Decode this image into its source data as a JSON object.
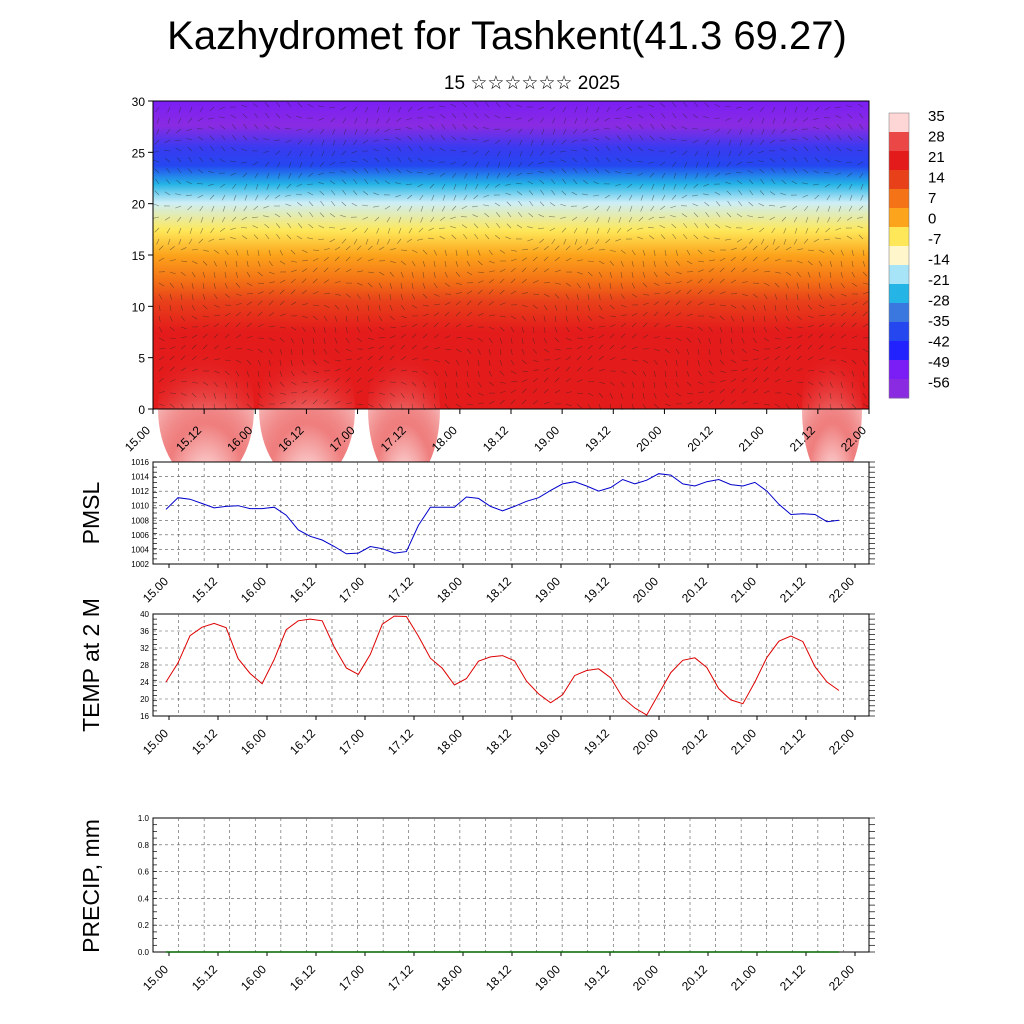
{
  "title": "Kazhydromet for Tashkent(41.3 69.27)",
  "subtitle": "15 ☆☆☆☆☆☆ 2025",
  "chart_data": [
    {
      "id": "cross_section",
      "type": "heatmap",
      "ylim": [
        0,
        30
      ],
      "yticks": [
        0,
        5,
        10,
        15,
        20,
        25,
        30
      ],
      "xticks": [
        "15.00",
        "15.12",
        "16.00",
        "16.12",
        "17.00",
        "17.12",
        "18.00",
        "18.12",
        "19.00",
        "19.12",
        "20.00",
        "20.12",
        "21.00",
        "21.12",
        "22.00"
      ],
      "colorbar_labels": [
        "35",
        "28",
        "21",
        "14",
        "7",
        "0",
        "-7",
        "-14",
        "-21",
        "-28",
        "-35",
        "-42",
        "-49",
        "-56"
      ],
      "colorbar_colors": [
        "#ffd6d6",
        "#ec4747",
        "#e41b1b",
        "#e8411a",
        "#f47316",
        "#fca41c",
        "#fee85a",
        "#fff6cc",
        "#a8e4f7",
        "#24b4e6",
        "#3a78e0",
        "#2447f0",
        "#2222ff",
        "#7a1ef5",
        "#8a2be2"
      ]
    },
    {
      "id": "pmsl",
      "type": "line",
      "ylabel": "PMSL",
      "ylim": [
        1002,
        1016
      ],
      "yticks": [
        1002,
        1004,
        1006,
        1008,
        1010,
        1012,
        1014,
        1016
      ],
      "xticks": [
        "15.00",
        "15.12",
        "16.00",
        "16.12",
        "17.00",
        "17.12",
        "18.00",
        "18.12",
        "19.00",
        "19.12",
        "20.00",
        "20.12",
        "21.00",
        "21.12",
        "22.00"
      ],
      "color": "#0000cc",
      "values": [
        1009.5,
        1011.1,
        1010.9,
        1010.3,
        1009.7,
        1009.9,
        1010.0,
        1009.6,
        1009.6,
        1009.8,
        1008.7,
        1006.7,
        1005.8,
        1005.3,
        1004.4,
        1003.4,
        1003.5,
        1004.4,
        1004.1,
        1003.5,
        1003.7,
        1007.3,
        1009.8,
        1009.8,
        1009.8,
        1011.2,
        1011.0,
        1009.9,
        1009.3,
        1009.9,
        1010.6,
        1011.1,
        1012.1,
        1013.0,
        1013.3,
        1012.7,
        1012.0,
        1012.5,
        1013.6,
        1013.0,
        1013.5,
        1014.4,
        1014.2,
        1013.0,
        1012.7,
        1013.3,
        1013.6,
        1012.9,
        1012.7,
        1013.2,
        1012.0,
        1010.2,
        1008.8,
        1008.9,
        1008.8,
        1007.8,
        1008.0
      ]
    },
    {
      "id": "temp2m",
      "type": "line",
      "ylabel": "TEMP at 2 M",
      "ylim": [
        16,
        40
      ],
      "yticks": [
        16,
        20,
        24,
        28,
        32,
        36,
        40
      ],
      "xticks": [
        "15.00",
        "15.12",
        "16.00",
        "16.12",
        "17.00",
        "17.12",
        "18.00",
        "18.12",
        "19.00",
        "19.12",
        "20.00",
        "20.12",
        "21.00",
        "21.12",
        "22.00"
      ],
      "color": "#dd0000",
      "values": [
        24.0,
        28.5,
        34.9,
        36.9,
        37.8,
        36.8,
        29.5,
        26.0,
        23.6,
        29.3,
        36.3,
        38.4,
        38.8,
        38.4,
        32.2,
        27.3,
        25.8,
        30.5,
        37.6,
        39.5,
        39.4,
        34.8,
        29.6,
        27.2,
        23.3,
        24.8,
        28.9,
        29.9,
        30.2,
        29.0,
        24.2,
        21.2,
        19.1,
        21.0,
        25.5,
        26.7,
        27.1,
        25.0,
        20.3,
        17.9,
        16.2,
        21.2,
        26.2,
        29.1,
        29.7,
        27.4,
        22.4,
        19.8,
        18.9,
        24.0,
        29.8,
        33.6,
        34.8,
        33.5,
        27.6,
        24.0,
        22.0
      ]
    },
    {
      "id": "precip",
      "type": "line",
      "ylabel": "PRECIP, mm",
      "ylim": [
        0.0,
        1.0
      ],
      "yticks": [
        "0.0",
        "0.2",
        "0.4",
        "0.6",
        "0.8",
        "1.0"
      ],
      "xticks": [
        "15.00",
        "15.12",
        "16.00",
        "16.12",
        "17.00",
        "17.12",
        "18.00",
        "18.12",
        "19.00",
        "19.12",
        "20.00",
        "20.12",
        "21.00",
        "21.12",
        "22.00"
      ],
      "color": "#006400",
      "values": [
        0,
        0,
        0,
        0,
        0,
        0,
        0,
        0,
        0,
        0,
        0,
        0,
        0,
        0,
        0,
        0,
        0,
        0,
        0,
        0,
        0,
        0,
        0,
        0,
        0,
        0,
        0,
        0,
        0,
        0,
        0,
        0,
        0,
        0,
        0,
        0,
        0,
        0,
        0,
        0,
        0,
        0,
        0,
        0,
        0,
        0,
        0,
        0,
        0,
        0,
        0,
        0,
        0,
        0,
        0,
        0,
        0
      ]
    }
  ]
}
